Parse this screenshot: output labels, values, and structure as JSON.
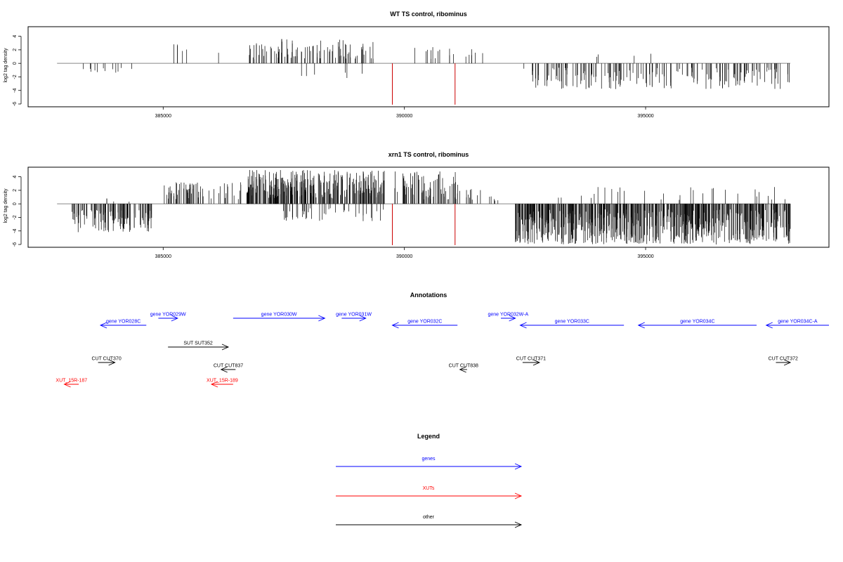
{
  "chart_data": [
    {
      "type": "bar",
      "title": "WT TS control, ribominus",
      "ylabel": "log2 tag density",
      "xlabel": "",
      "xlim": [
        382200,
        398800
      ],
      "ylim": [
        -6,
        5
      ],
      "yticks": [
        4,
        2,
        0,
        -2,
        -4,
        -6
      ],
      "xticks": [
        385000,
        390000,
        395000
      ],
      "xtick_labels": [
        "385000",
        "390000",
        "395000"
      ],
      "baseline": [
        382800,
        398000
      ],
      "highlights": [
        {
          "x": 389750,
          "value": -6.1,
          "color": "#cc0000"
        },
        {
          "x": 391050,
          "value": -6.1,
          "color": "#cc0000"
        }
      ],
      "density": [
        {
          "from": 383300,
          "to": 384500,
          "n": 12,
          "min": -1.6,
          "max": -0.6,
          "seed": 3
        },
        {
          "from": 385200,
          "to": 385600,
          "n": 5,
          "min": 1.5,
          "max": 3.0,
          "seed": 5
        },
        {
          "from": 386100,
          "to": 386300,
          "n": 1,
          "min": 1.2,
          "max": 1.6,
          "seed": 7
        },
        {
          "from": 386700,
          "to": 389400,
          "n": 90,
          "min": 0.6,
          "max": 3.6,
          "seed": 11
        },
        {
          "from": 387800,
          "to": 389200,
          "n": 6,
          "min": -2.4,
          "max": -0.8,
          "seed": 13
        },
        {
          "from": 390200,
          "to": 391800,
          "n": 18,
          "min": 0.5,
          "max": 2.8,
          "seed": 17
        },
        {
          "from": 392400,
          "to": 398000,
          "n": 170,
          "min": -3.8,
          "max": -0.6,
          "seed": 19
        },
        {
          "from": 393400,
          "to": 395800,
          "n": 4,
          "min": 0.6,
          "max": 1.6,
          "seed": 23
        }
      ]
    },
    {
      "type": "bar",
      "title": "xrn1 TS control, ribominus",
      "ylabel": "log2 tag density",
      "xlabel": "",
      "xlim": [
        382200,
        398800
      ],
      "ylim": [
        -6,
        5
      ],
      "yticks": [
        4,
        2,
        0,
        -2,
        -4,
        -6
      ],
      "xticks": [
        385000,
        390000,
        395000
      ],
      "xtick_labels": [
        "385000",
        "390000",
        "395000"
      ],
      "baseline": [
        382800,
        398000
      ],
      "highlights": [
        {
          "x": 389750,
          "value": -6.1,
          "color": "#cc0000"
        },
        {
          "x": 391050,
          "value": -6.1,
          "color": "#cc0000"
        }
      ],
      "density": [
        {
          "from": 383100,
          "to": 384800,
          "n": 110,
          "min": -4.2,
          "max": -0.8,
          "seed": 29
        },
        {
          "from": 383800,
          "to": 384500,
          "n": 4,
          "min": 0.3,
          "max": 0.9,
          "seed": 31
        },
        {
          "from": 385000,
          "to": 386700,
          "n": 60,
          "min": 0.6,
          "max": 3.2,
          "seed": 37
        },
        {
          "from": 386700,
          "to": 389600,
          "n": 260,
          "min": 0.8,
          "max": 5.0,
          "seed": 41
        },
        {
          "from": 387400,
          "to": 389600,
          "n": 40,
          "min": -2.6,
          "max": -0.6,
          "seed": 43
        },
        {
          "from": 389800,
          "to": 391200,
          "n": 70,
          "min": 0.6,
          "max": 4.8,
          "seed": 47
        },
        {
          "from": 391200,
          "to": 392000,
          "n": 14,
          "min": 0.4,
          "max": 3.0,
          "seed": 53
        },
        {
          "from": 392300,
          "to": 398000,
          "n": 600,
          "min": -6.0,
          "max": -0.8,
          "seed": 59
        },
        {
          "from": 393000,
          "to": 398000,
          "n": 30,
          "min": 0.4,
          "max": 2.6,
          "seed": 61
        }
      ]
    }
  ],
  "annotations": {
    "title": "Annotations",
    "features": [
      {
        "label": "gene YOR028C",
        "kind": "gene",
        "strand": "-",
        "start": 383700,
        "end": 384650,
        "row": 2
      },
      {
        "label": "gene YOR029W",
        "kind": "gene",
        "strand": "+",
        "start": 384900,
        "end": 385300,
        "row": 1
      },
      {
        "label": "gene YOR030W",
        "kind": "gene",
        "strand": "+",
        "start": 386450,
        "end": 388350,
        "row": 1
      },
      {
        "label": "gene YOR031W",
        "kind": "gene",
        "strand": "+",
        "start": 388700,
        "end": 389200,
        "row": 1
      },
      {
        "label": "gene YOR032C",
        "kind": "gene",
        "strand": "-",
        "start": 389750,
        "end": 391100,
        "row": 2
      },
      {
        "label": "gene YOR032W-A",
        "kind": "gene",
        "strand": "+",
        "start": 392000,
        "end": 392300,
        "row": 1
      },
      {
        "label": "gene YOR033C",
        "kind": "gene",
        "strand": "-",
        "start": 392400,
        "end": 394550,
        "row": 2
      },
      {
        "label": "gene YOR034C",
        "kind": "gene",
        "strand": "-",
        "start": 394850,
        "end": 397300,
        "row": 2
      },
      {
        "label": "gene YOR034C-A",
        "kind": "gene",
        "strand": "-",
        "start": 397500,
        "end": 398800,
        "row": 2
      },
      {
        "label": "SUT SUT352",
        "kind": "other",
        "strand": "+",
        "start": 385100,
        "end": 386350,
        "row": 3
      },
      {
        "label": "CUT CUT370",
        "kind": "other",
        "strand": "+",
        "start": 383650,
        "end": 384000,
        "row": 4
      },
      {
        "label": "CUT CUT837",
        "kind": "other",
        "strand": "-",
        "start": 386200,
        "end": 386500,
        "row": 5
      },
      {
        "label": "CUT CUT838",
        "kind": "other",
        "strand": "-",
        "start": 391150,
        "end": 391300,
        "row": 5
      },
      {
        "label": "CUT CUT371",
        "kind": "other",
        "strand": "+",
        "start": 392450,
        "end": 392800,
        "row": 4
      },
      {
        "label": "CUT CUT372",
        "kind": "other",
        "strand": "+",
        "start": 397700,
        "end": 398000,
        "row": 4
      },
      {
        "label": "XUT_15R-187",
        "kind": "xut",
        "strand": "-",
        "start": 382950,
        "end": 383250,
        "row": 6
      },
      {
        "label": "XUT_15R-189",
        "kind": "xut",
        "strand": "-",
        "start": 386000,
        "end": 386450,
        "row": 6
      }
    ]
  },
  "legend": {
    "title": "Legend",
    "items": [
      {
        "label": "genes",
        "color": "#0000ff"
      },
      {
        "label": "XUTs",
        "color": "#ff0000"
      },
      {
        "label": "other",
        "color": "#000000"
      }
    ]
  },
  "colors": {
    "gene": "#0000ff",
    "xut": "#ff0000",
    "other": "#000000",
    "highlight": "#cc0000",
    "baseline": "#888888"
  }
}
